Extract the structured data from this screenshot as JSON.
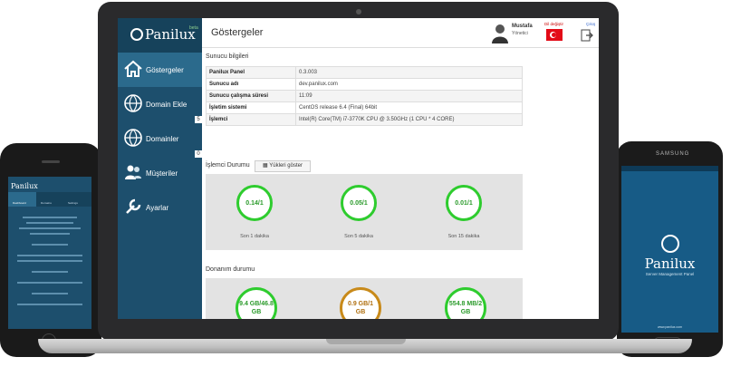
{
  "app": {
    "brand": "Panilux",
    "brand_version": "beta"
  },
  "sidebar": {
    "items": [
      {
        "label": "Göstergeler",
        "icon": "home-icon",
        "active": true
      },
      {
        "label": "Domain Ekle",
        "icon": "globe-add-icon"
      },
      {
        "label": "Domainler",
        "icon": "globe-icon",
        "badge": "5"
      },
      {
        "label": "Müşteriler",
        "icon": "users-icon",
        "badge": "0"
      },
      {
        "label": "Ayarlar",
        "icon": "wrench-icon"
      }
    ]
  },
  "header": {
    "title": "Göstergeler",
    "user_name": "Mustafa",
    "user_role": "Yönetici",
    "lang_label": "Dil değiştir",
    "exit_label": "Çıkış"
  },
  "server_info": {
    "title": "Sunucu bilgileri",
    "rows": [
      {
        "key": "Panilux Panel",
        "value": "0.3.003"
      },
      {
        "key": "Sunucu adı",
        "value": "dev.panilux.com"
      },
      {
        "key": "Sunucu çalışma süresi",
        "value": "11:09"
      },
      {
        "key": "İşletim sistemi",
        "value": "CentOS release 6.4 (Final) 64bit"
      },
      {
        "key": "İşlemci",
        "value": "Intel(R) Core(TM) i7-3770K CPU @ 3.50GHz (1 CPU * 4 CORE)"
      }
    ]
  },
  "cpu": {
    "title": "İşlemci Durumu",
    "button": "Yükleri göster",
    "gauges": [
      {
        "value": "0.14/1",
        "label": "Son 1 dakika"
      },
      {
        "value": "0.05/1",
        "label": "Son 5 dakika"
      },
      {
        "value": "0.01/1",
        "label": "Son 15 dakika"
      }
    ]
  },
  "hardware": {
    "title": "Donanım durumu",
    "gauges": [
      {
        "value": "9.4 GB/46.8 GB",
        "status": "ok"
      },
      {
        "value": "0.9 GB/1 GB",
        "status": "warn"
      },
      {
        "value": "554.8 MB/2 GB",
        "status": "ok"
      }
    ]
  },
  "galaxy": {
    "maker": "SAMSUNG",
    "subtitle": "Server Management Panel",
    "footer": "www.panilux.com"
  },
  "iphone": {
    "tabs": [
      "Dashboard",
      "Domains",
      "Settings"
    ]
  }
}
